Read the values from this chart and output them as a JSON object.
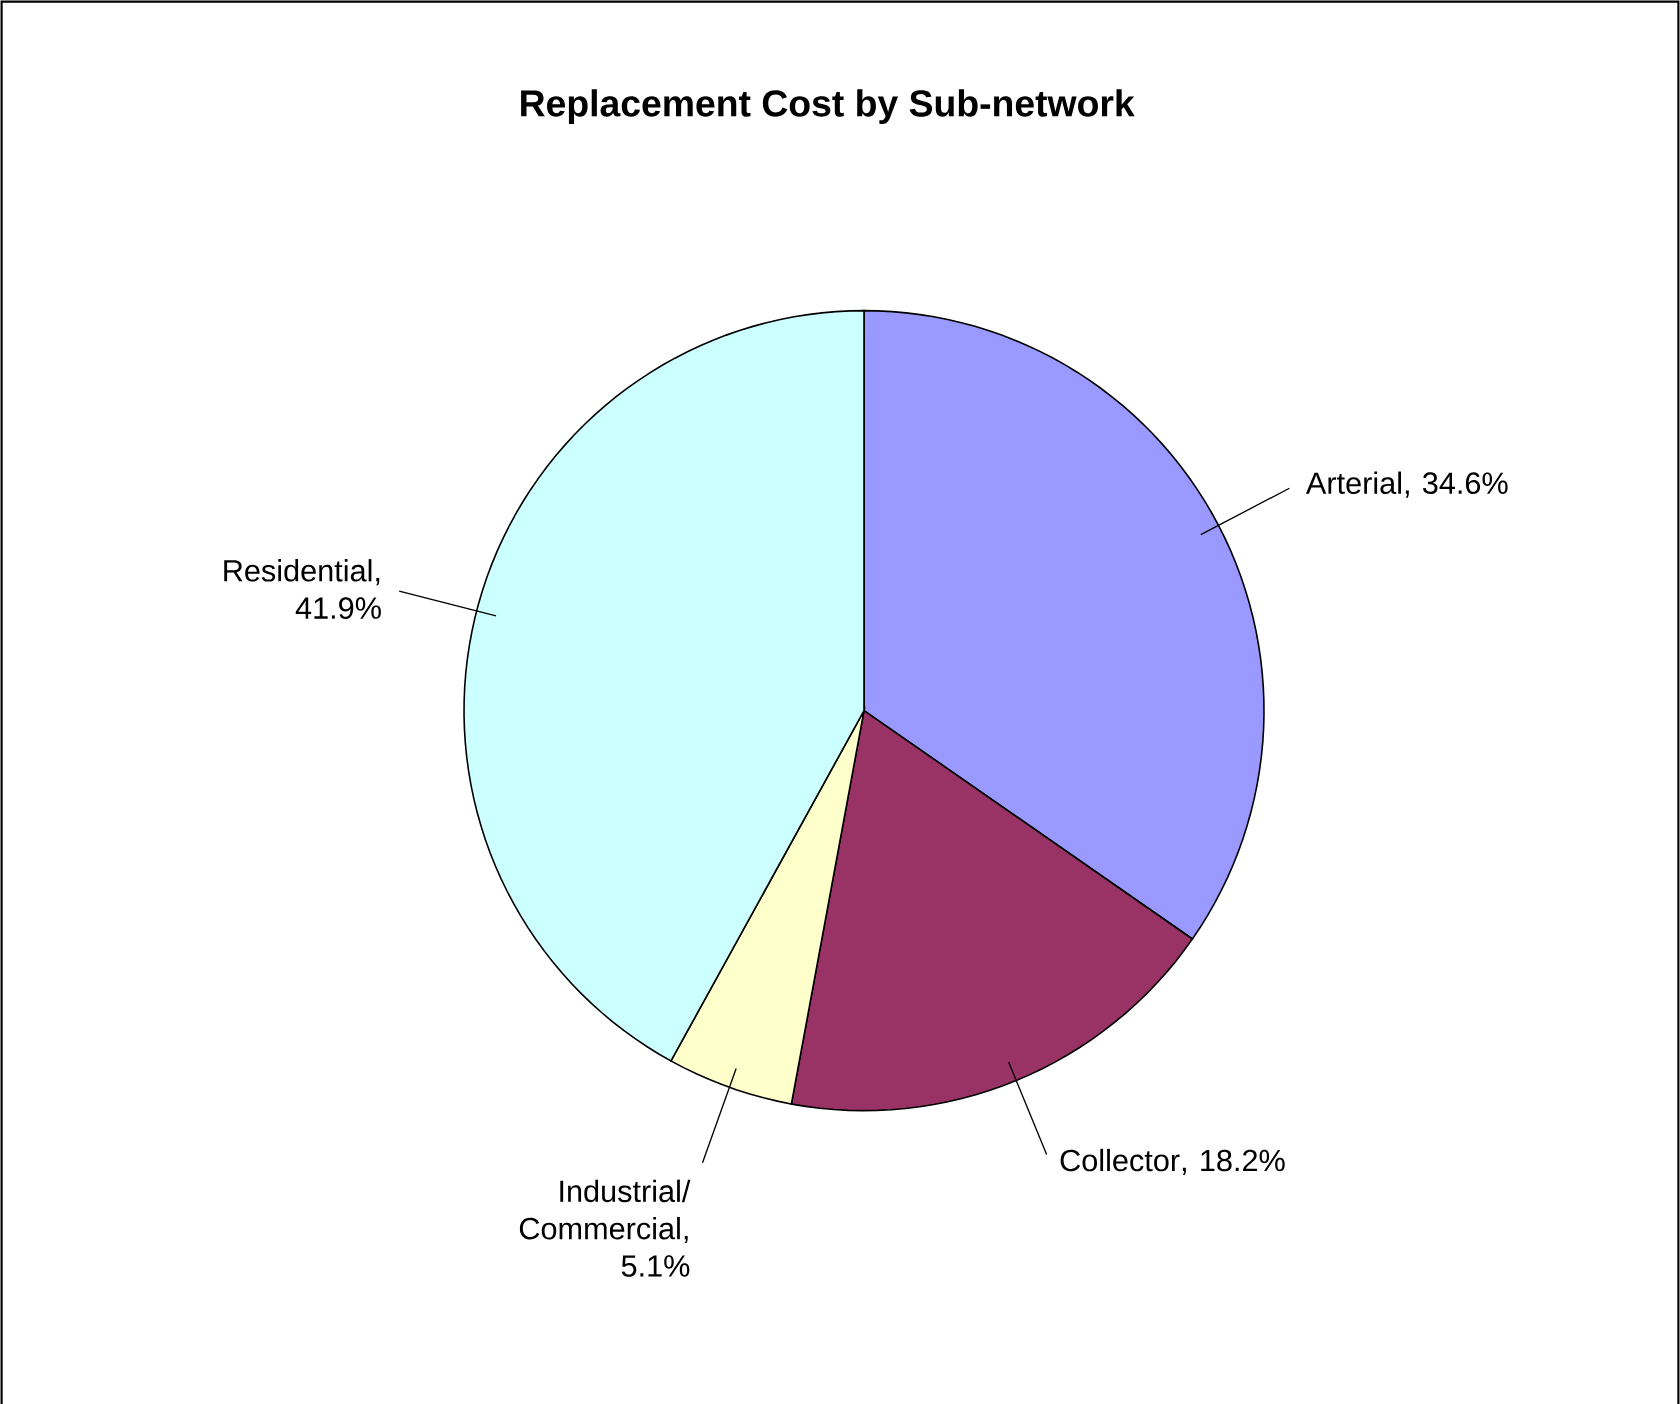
{
  "chart_data": {
    "type": "pie",
    "title": "Replacement Cost by Sub-network",
    "categories": [
      "Arterial",
      "Collector",
      "Industrial/ Commercial",
      "Residential"
    ],
    "value_labels": [
      ", 34.6%",
      ", 18.2%",
      ", 5.1%",
      ", 41.9%"
    ],
    "values": [
      34.6,
      18.2,
      5.1,
      41.9
    ],
    "colors": [
      "#9999ff",
      "#993366",
      "#ffffcc",
      "#ccffff"
    ],
    "data_labels": true
  }
}
